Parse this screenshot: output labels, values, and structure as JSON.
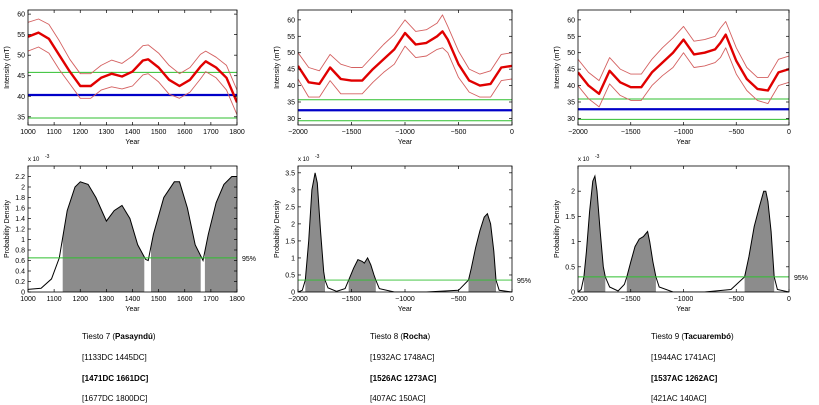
{
  "chart_data": [
    {
      "type": "line",
      "panel": "intensity",
      "column": 0,
      "xlabel": "Year",
      "ylabel": "Intensity (mT)",
      "xlim": [
        1000,
        1800
      ],
      "ylim": [
        33,
        61
      ],
      "xticks": [
        1000,
        1100,
        1200,
        1300,
        1400,
        1500,
        1600,
        1700,
        1800
      ],
      "yticks": [
        35,
        40,
        45,
        50,
        55,
        60
      ],
      "x": [
        1000,
        1040,
        1080,
        1120,
        1160,
        1200,
        1240,
        1280,
        1320,
        1360,
        1400,
        1440,
        1460,
        1500,
        1540,
        1580,
        1620,
        1660,
        1680,
        1720,
        1760,
        1800
      ],
      "series": [
        {
          "role": "mean",
          "color": "#e00000",
          "values": [
            54.5,
            55.5,
            54,
            50,
            46,
            42.5,
            42.5,
            44.5,
            45.5,
            44.8,
            46,
            48.7,
            49,
            47,
            44,
            42.5,
            44,
            47.2,
            48.5,
            47,
            44.5,
            38.5
          ]
        },
        {
          "role": "upper",
          "color": "#d46060",
          "values": [
            58,
            58.8,
            57.5,
            53.5,
            49,
            45.5,
            45.5,
            47.5,
            48.8,
            48,
            49.8,
            52.3,
            52.5,
            50.5,
            47.5,
            45.5,
            47,
            50.2,
            51,
            49.5,
            47.5,
            41.5
          ]
        },
        {
          "role": "lower",
          "color": "#d46060",
          "values": [
            51,
            52,
            50.5,
            46.5,
            43,
            39.5,
            39.5,
            41.5,
            42.3,
            41.8,
            42.5,
            45.2,
            45.5,
            43.5,
            40.5,
            39.5,
            41,
            44.2,
            46,
            44.5,
            41.5,
            35.5
          ]
        }
      ],
      "hlines": [
        {
          "y": 40.3,
          "color": "#0000c8"
        },
        {
          "y": 45.8,
          "color": "#2fbf2f"
        },
        {
          "y": 34.7,
          "color": "#2fbf2f"
        }
      ]
    },
    {
      "type": "line",
      "panel": "intensity",
      "column": 1,
      "xlabel": "Year",
      "ylabel": "Intensity (mT)",
      "xlim": [
        -2000,
        0
      ],
      "ylim": [
        28,
        63
      ],
      "xticks": [
        -2000,
        -1500,
        -1000,
        -500,
        0
      ],
      "yticks": [
        30,
        35,
        40,
        45,
        50,
        55,
        60
      ],
      "x": [
        -2000,
        -1900,
        -1800,
        -1700,
        -1600,
        -1500,
        -1400,
        -1300,
        -1200,
        -1100,
        -1000,
        -900,
        -800,
        -700,
        -650,
        -600,
        -500,
        -400,
        -300,
        -200,
        -100,
        0
      ],
      "series": [
        {
          "role": "mean",
          "color": "#e00000",
          "values": [
            46,
            41,
            40.5,
            45.5,
            42,
            41.5,
            41.5,
            45,
            48,
            51,
            56,
            52.5,
            53,
            55,
            56.5,
            54,
            46.5,
            41.5,
            40,
            40.5,
            45.5,
            46
          ]
        },
        {
          "role": "upper",
          "color": "#d46060",
          "values": [
            50,
            45.5,
            44.5,
            49.5,
            46.5,
            45.5,
            45.5,
            49,
            52.5,
            55.5,
            60,
            56.5,
            57,
            59,
            61.5,
            58,
            50.5,
            45,
            43.5,
            44.5,
            49.5,
            50
          ]
        },
        {
          "role": "lower",
          "color": "#d46060",
          "values": [
            42,
            36.5,
            36.5,
            41.5,
            37.5,
            37.5,
            37.5,
            41,
            44,
            46.5,
            52,
            48.5,
            49,
            51,
            51.5,
            50,
            42.5,
            38,
            36.5,
            36.5,
            41.5,
            42
          ]
        }
      ],
      "hlines": [
        {
          "y": 32.5,
          "color": "#0000c8"
        },
        {
          "y": 35.7,
          "color": "#2fbf2f"
        },
        {
          "y": 29.3,
          "color": "#2fbf2f"
        }
      ]
    },
    {
      "type": "line",
      "panel": "intensity",
      "column": 2,
      "xlabel": "Year",
      "ylabel": "Intensity (mT)",
      "xlim": [
        -2000,
        0
      ],
      "ylim": [
        28,
        63
      ],
      "xticks": [
        -2000,
        -1500,
        -1000,
        -500,
        0
      ],
      "yticks": [
        30,
        35,
        40,
        45,
        50,
        55,
        60
      ],
      "x": [
        -2000,
        -1900,
        -1800,
        -1700,
        -1600,
        -1500,
        -1400,
        -1300,
        -1200,
        -1100,
        -1000,
        -900,
        -800,
        -700,
        -650,
        -600,
        -500,
        -400,
        -300,
        -200,
        -100,
        0
      ],
      "series": [
        {
          "role": "mean",
          "color": "#e00000",
          "values": [
            44,
            40,
            37.5,
            44.5,
            41,
            39.5,
            39.5,
            44,
            47,
            50,
            54,
            49.5,
            50,
            51,
            53,
            55.5,
            47.5,
            42,
            39,
            38.5,
            44,
            45
          ]
        },
        {
          "role": "upper",
          "color": "#d46060",
          "values": [
            48,
            44,
            41.5,
            48.5,
            45,
            43.5,
            43.5,
            48,
            51.5,
            54.5,
            58,
            53.5,
            54,
            55,
            57.5,
            59.5,
            51.5,
            45.5,
            42.5,
            42.5,
            48,
            49
          ]
        },
        {
          "role": "lower",
          "color": "#d46060",
          "values": [
            40,
            36,
            33.5,
            40.5,
            37,
            35.5,
            35.5,
            40,
            43,
            45.5,
            50,
            45.5,
            46,
            47,
            48.5,
            51.5,
            43.5,
            38.5,
            35.5,
            34.5,
            40,
            41
          ]
        }
      ],
      "hlines": [
        {
          "y": 32.8,
          "color": "#0000c8"
        },
        {
          "y": 35.9,
          "color": "#2fbf2f"
        },
        {
          "y": 29.7,
          "color": "#2fbf2f"
        }
      ]
    },
    {
      "type": "area",
      "panel": "density",
      "column": 0,
      "xlabel": "Year",
      "ylabel": "Probability Density",
      "yscale_label": "x 10",
      "xlim": [
        1000,
        1800
      ],
      "ylim": [
        0,
        0.0024
      ],
      "xticks": [
        1000,
        1100,
        1200,
        1300,
        1400,
        1500,
        1600,
        1700,
        1800
      ],
      "yticks": [
        0,
        0.0002,
        0.0004,
        0.0006,
        0.0008,
        0.001,
        0.0012,
        0.0014,
        0.0016,
        0.0018,
        0.002,
        0.0022
      ],
      "ytick_labels": [
        "0",
        "0.2",
        "0.4",
        "0.6",
        "0.8",
        "1",
        "1.2",
        "1.4",
        "1.6",
        "1.8",
        "2",
        "2.2"
      ],
      "x": [
        1000,
        1050,
        1090,
        1120,
        1150,
        1180,
        1200,
        1230,
        1260,
        1300,
        1330,
        1360,
        1390,
        1420,
        1450,
        1460,
        1480,
        1520,
        1560,
        1580,
        1610,
        1640,
        1670,
        1690,
        1720,
        1750,
        1780,
        1800
      ],
      "density": [
        5e-05,
        7e-05,
        0.00025,
        0.00065,
        0.00155,
        0.002,
        0.0021,
        0.00205,
        0.0018,
        0.00135,
        0.00155,
        0.00165,
        0.0014,
        0.0009,
        0.00062,
        0.0006,
        0.0011,
        0.0018,
        0.0021,
        0.0021,
        0.0016,
        0.0009,
        0.0006,
        0.0011,
        0.0017,
        0.00205,
        0.0022,
        0.0022
      ],
      "threshold": 0.00065,
      "threshold_label": "95%",
      "intervals": [
        [
          1133,
          1445
        ],
        [
          1471,
          1661
        ],
        [
          1677,
          1800
        ]
      ]
    },
    {
      "type": "area",
      "panel": "density",
      "column": 1,
      "xlabel": "Year",
      "ylabel": "Probability Density",
      "yscale_label": "x 10",
      "xlim": [
        -2000,
        0
      ],
      "ylim": [
        0,
        0.0037
      ],
      "xticks": [
        -2000,
        -1500,
        -1000,
        -500,
        0
      ],
      "yticks": [
        0,
        0.0005,
        0.001,
        0.0015,
        0.002,
        0.0025,
        0.003,
        0.0035
      ],
      "ytick_labels": [
        "0",
        "0.5",
        "1",
        "1.5",
        "2",
        "2.5",
        "3",
        "3.5"
      ],
      "x": [
        -2000,
        -1960,
        -1932,
        -1900,
        -1870,
        -1840,
        -1820,
        -1790,
        -1760,
        -1748,
        -1720,
        -1640,
        -1560,
        -1526,
        -1480,
        -1440,
        -1400,
        -1380,
        -1350,
        -1320,
        -1290,
        -1273,
        -1240,
        -1100,
        -800,
        -500,
        -407,
        -380,
        -340,
        -300,
        -260,
        -230,
        -200,
        -170,
        -150,
        -120,
        0
      ],
      "density": [
        0,
        5e-05,
        0.00035,
        0.0015,
        0.003,
        0.0035,
        0.0032,
        0.0018,
        0.0006,
        0.00035,
        0.00012,
        2e-05,
        0.0001,
        0.00035,
        0.0007,
        0.00095,
        0.0009,
        0.00085,
        0.001,
        0.0008,
        0.0005,
        0.00035,
        0.0001,
        0,
        0,
        5e-05,
        0.00035,
        0.0007,
        0.0013,
        0.0018,
        0.0022,
        0.0023,
        0.002,
        0.0012,
        0.00035,
        5e-05,
        0
      ],
      "threshold": 0.00035,
      "threshold_label": "95%",
      "intervals": [
        [
          -1932,
          -1748
        ],
        [
          -1526,
          -1273
        ],
        [
          -407,
          -150
        ]
      ]
    },
    {
      "type": "area",
      "panel": "density",
      "column": 2,
      "xlabel": "Year",
      "ylabel": "Probability Density",
      "yscale_label": "x 10",
      "xlim": [
        -2000,
        0
      ],
      "ylim": [
        0,
        0.0025
      ],
      "xticks": [
        -2000,
        -1500,
        -1000,
        -500,
        0
      ],
      "yticks": [
        0,
        0.0005,
        0.001,
        0.0015,
        0.002
      ],
      "ytick_labels": [
        "0",
        "0.5",
        "1",
        "1.5",
        "2"
      ],
      "x": [
        -2000,
        -1970,
        -1944,
        -1920,
        -1890,
        -1860,
        -1840,
        -1820,
        -1790,
        -1760,
        -1741,
        -1700,
        -1620,
        -1560,
        -1537,
        -1500,
        -1460,
        -1420,
        -1380,
        -1360,
        -1340,
        -1320,
        -1290,
        -1262,
        -1230,
        -1100,
        -800,
        -550,
        -421,
        -380,
        -330,
        -280,
        -240,
        -220,
        -200,
        -170,
        -140,
        -110,
        0
      ],
      "density": [
        0,
        5e-05,
        0.0003,
        0.0008,
        0.0016,
        0.0022,
        0.0023,
        0.002,
        0.0012,
        0.0005,
        0.0003,
        0.0001,
        2e-05,
        0.00015,
        0.0003,
        0.0006,
        0.0009,
        0.00105,
        0.0011,
        0.00115,
        0.0012,
        0.001,
        0.0006,
        0.0003,
        0.0001,
        0,
        0,
        5e-05,
        0.0003,
        0.0007,
        0.0013,
        0.0017,
        0.002,
        0.002,
        0.0018,
        0.0012,
        0.0003,
        5e-05,
        0
      ],
      "threshold": 0.0003,
      "threshold_label": "95%",
      "intervals": [
        [
          -1944,
          -1741
        ],
        [
          -1537,
          -1262
        ],
        [
          -421,
          -140
        ]
      ]
    }
  ],
  "y_exponent": "-3",
  "captions": [
    {
      "title_prefix": "Tiesto 7 (",
      "title_name": "Pasayndú",
      "title_suffix": ")",
      "lines": [
        "[1133DC  1445DC]",
        "[1471DC  1661DC]",
        "[1677DC   1800DC]"
      ]
    },
    {
      "title_prefix": "Tiesto 8 (",
      "title_name": "Rocha",
      "title_suffix": ")",
      "lines": [
        "[1932AC  1748AC]",
        "[1526AC  1273AC]",
        "[407AC   150AC]"
      ]
    },
    {
      "title_prefix": "Tiesto 9 (",
      "title_name": "Tacuarembó",
      "title_suffix": ")",
      "lines": [
        "[1944AC  1741AC]",
        "[1537AC  1262AC]",
        "[421AC   140AC]"
      ]
    }
  ]
}
